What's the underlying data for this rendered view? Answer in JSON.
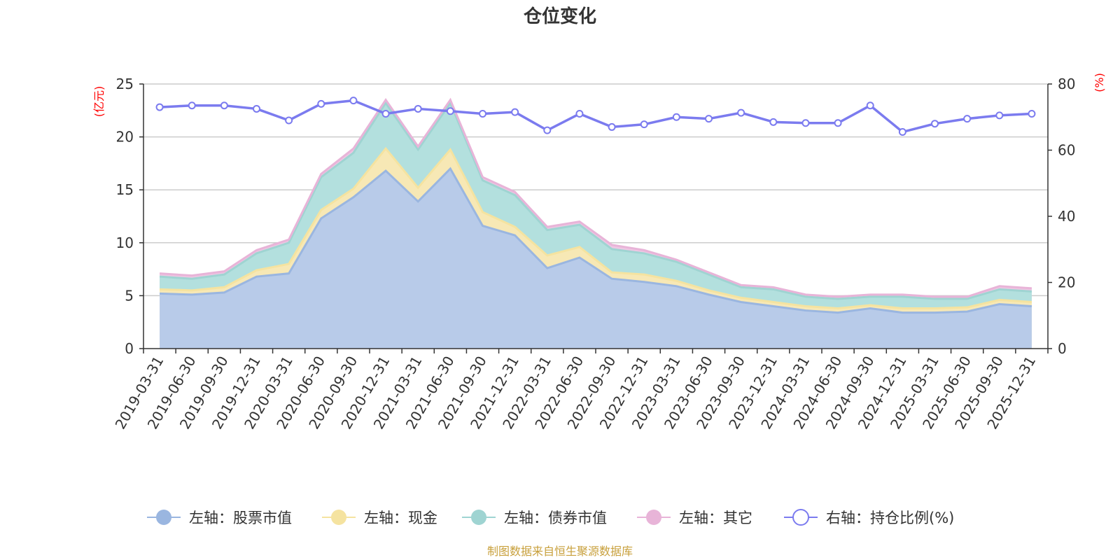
{
  "chart_data": {
    "type": "area",
    "title": "仓位变化",
    "left_unit": "(亿元)",
    "right_unit": "(%)",
    "left_ylim": [
      0,
      25
    ],
    "left_ticks": [
      "0",
      "5",
      "10",
      "15",
      "20",
      "25"
    ],
    "right_ylim": [
      0,
      80
    ],
    "right_ticks": [
      "0",
      "20",
      "40",
      "60",
      "80"
    ],
    "categories": [
      "2019-03-31",
      "2019-06-30",
      "2019-09-30",
      "2019-12-31",
      "2020-03-31",
      "2020-06-30",
      "2020-09-30",
      "2020-12-31",
      "2021-03-31",
      "2021-06-30",
      "2021-09-30",
      "2021-12-31",
      "2022-03-31",
      "2022-06-30",
      "2022-09-30",
      "2022-12-31",
      "2023-03-31",
      "2023-06-30",
      "2023-09-30",
      "2023-12-31",
      "2024-03-31",
      "2024-06-30",
      "2024-09-30",
      "2024-12-31",
      "2025-03-31",
      "2025-06-30",
      "2025-09-30",
      "2025-12-31"
    ],
    "stacked_series": [
      {
        "name": "左轴：股票市值",
        "color": "#9ab6e0",
        "fill": "#b8cbe9",
        "values": [
          5.2,
          5.1,
          5.3,
          6.8,
          7.1,
          12.3,
          14.3,
          16.8,
          13.9,
          17.0,
          11.6,
          10.7,
          7.6,
          8.6,
          6.6,
          6.3,
          5.9,
          5.1,
          4.4,
          4.0,
          3.6,
          3.4,
          3.8,
          3.4,
          3.4,
          3.5,
          4.2,
          4.0
        ]
      },
      {
        "name": "左轴：现金",
        "color": "#f5e3a0",
        "fill": "#f7e8b5",
        "values": [
          0.4,
          0.4,
          0.5,
          0.6,
          0.9,
          0.8,
          0.8,
          2.1,
          1.3,
          1.8,
          1.3,
          0.8,
          1.2,
          1.0,
          0.6,
          0.7,
          0.5,
          0.4,
          0.4,
          0.4,
          0.4,
          0.4,
          0.3,
          0.4,
          0.4,
          0.4,
          0.4,
          0.4
        ]
      },
      {
        "name": "左轴：债券市值",
        "color": "#9fd4d2",
        "fill": "#b3e0de",
        "values": [
          1.2,
          1.1,
          1.2,
          1.6,
          2.0,
          3.1,
          3.4,
          4.3,
          3.6,
          4.4,
          3.0,
          3.0,
          2.4,
          2.1,
          2.2,
          2.0,
          1.8,
          1.5,
          1.0,
          1.2,
          0.9,
          0.9,
          0.8,
          1.1,
          0.9,
          0.8,
          1.0,
          1.0
        ]
      },
      {
        "name": "左轴：其它",
        "color": "#e8b4d8",
        "fill": "#eec7e3",
        "values": [
          0.3,
          0.3,
          0.3,
          0.3,
          0.3,
          0.3,
          0.4,
          0.3,
          0.3,
          0.3,
          0.3,
          0.3,
          0.3,
          0.3,
          0.4,
          0.3,
          0.2,
          0.2,
          0.2,
          0.2,
          0.2,
          0.2,
          0.2,
          0.2,
          0.2,
          0.2,
          0.3,
          0.3
        ]
      }
    ],
    "line_series": {
      "name": "右轴：持仓比例(%)",
      "color": "#7b7bef",
      "values": [
        73.0,
        73.5,
        73.5,
        72.5,
        69.0,
        74.0,
        75.0,
        71.0,
        72.5,
        71.8,
        71.0,
        71.5,
        66.0,
        71.0,
        67.0,
        67.8,
        70.0,
        69.5,
        71.3,
        68.5,
        68.2,
        68.2,
        73.5,
        65.5,
        68.0,
        69.5,
        70.5,
        71.0
      ]
    },
    "legend_position": "bottom",
    "source_note": "制图数据来自恒生聚源数据库"
  }
}
